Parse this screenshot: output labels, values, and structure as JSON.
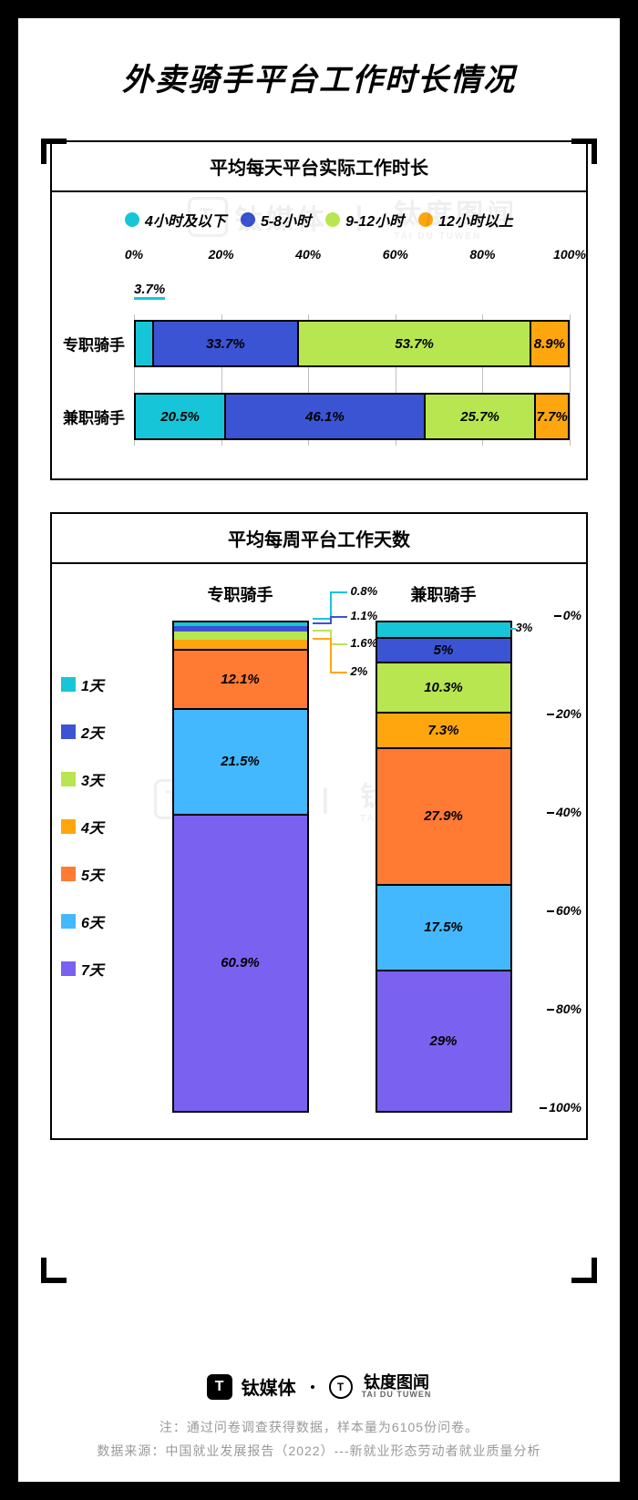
{
  "title": "外卖骑手平台工作时长情况",
  "colors": {
    "c1": "#16c6d8",
    "c2": "#3b54d3",
    "c3": "#b7e650",
    "c4": "#ffa60f",
    "c5": "#ff7a33",
    "c6": "#44b8ff",
    "c7": "#7a61f0",
    "border": "#000000",
    "bg": "#ffffff"
  },
  "chart1": {
    "title": "平均每天平台实际工作时长",
    "legend": [
      {
        "label": "4小时及以下",
        "color": "#16c6d8"
      },
      {
        "label": "5-8小时",
        "color": "#3b54d3"
      },
      {
        "label": "9-12小时",
        "color": "#b7e650"
      },
      {
        "label": "12小时以上",
        "color": "#ffa60f"
      }
    ],
    "axis": {
      "ticks": [
        0,
        20,
        40,
        60,
        80,
        100
      ],
      "suffix": "%"
    },
    "rows": [
      {
        "label": "专职骑手",
        "values": [
          3.7,
          33.7,
          53.7,
          8.9
        ],
        "callout_index": 0
      },
      {
        "label": "兼职骑手",
        "values": [
          20.5,
          46.1,
          25.7,
          7.7
        ]
      }
    ]
  },
  "chart2": {
    "title": "平均每周平台工作天数",
    "axis": {
      "ticks": [
        0,
        20,
        40,
        60,
        80,
        100
      ],
      "suffix": "%"
    },
    "legend": [
      {
        "label": "1天",
        "color": "#16c6d8"
      },
      {
        "label": "2天",
        "color": "#3b54d3"
      },
      {
        "label": "3天",
        "color": "#b7e650"
      },
      {
        "label": "4天",
        "color": "#ffa60f"
      },
      {
        "label": "5天",
        "color": "#ff7a33"
      },
      {
        "label": "6天",
        "color": "#44b8ff"
      },
      {
        "label": "7天",
        "color": "#7a61f0"
      }
    ],
    "columns": [
      {
        "label": "专职骑手",
        "values": [
          0.8,
          1.1,
          1.6,
          2.0,
          12.1,
          21.5,
          60.9
        ],
        "callout_count": 4
      },
      {
        "label": "兼职骑手",
        "values": [
          3.0,
          5.0,
          10.3,
          7.3,
          27.9,
          17.5,
          29.0
        ],
        "callout_count": 1
      }
    ]
  },
  "footer": {
    "brand1_badge": "T",
    "brand1": "钛媒体",
    "brand2_badge": "T",
    "brand2": "钛度图闻",
    "brand2_sub": "TAI DU TUWEN",
    "note1": "注：通过问卷调查获得数据，样本量为6105份问卷。",
    "note2": "数据来源：中国就业发展报告（2022）---新就业形态劳动者就业质量分析"
  },
  "watermark": {
    "left": "钛媒体",
    "right": "钛度图闻",
    "right_sub": "TAI DU TUWEN"
  }
}
